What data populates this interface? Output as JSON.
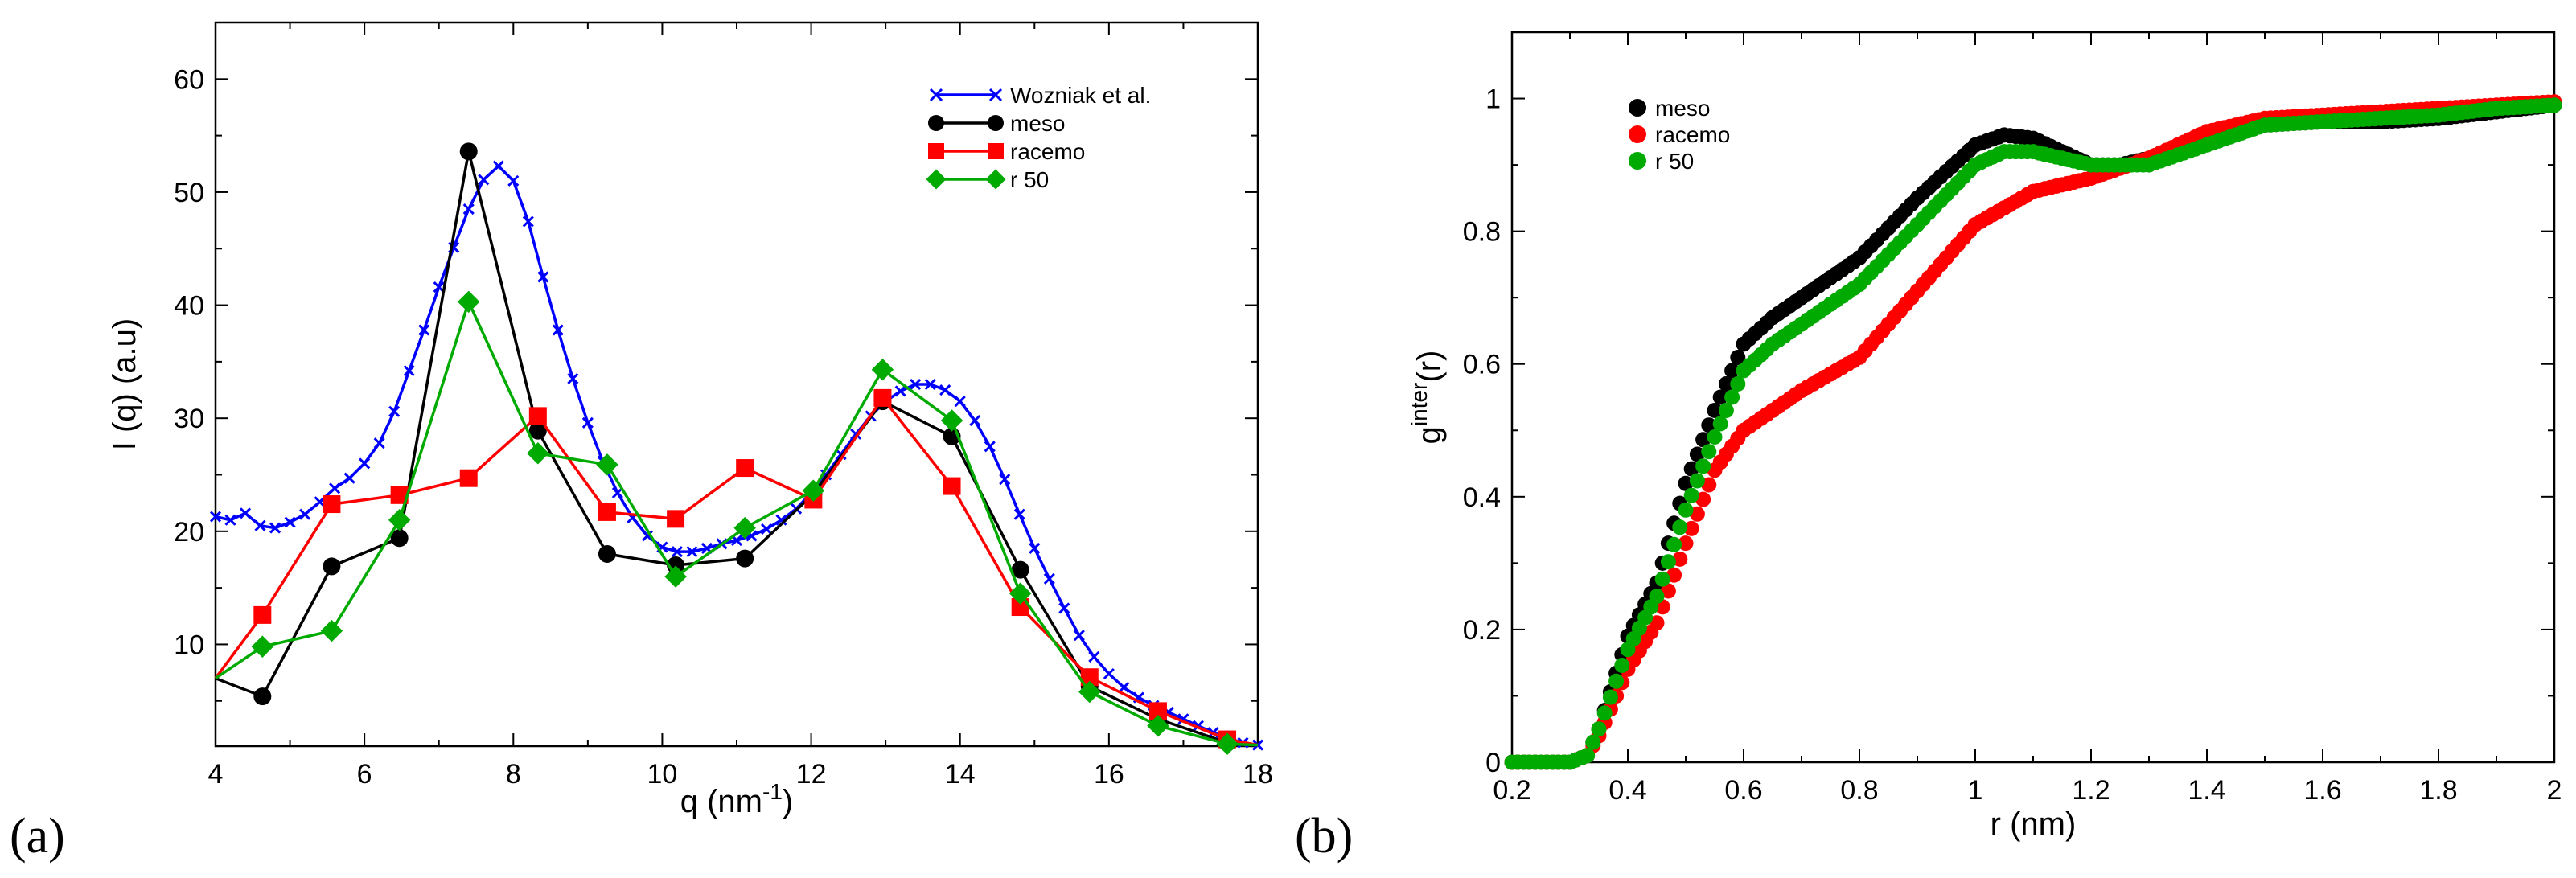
{
  "chart_data": [
    {
      "type": "line",
      "panel_label": "(a)",
      "title": "",
      "xlabel": "q (nm",
      "xlabel_sup": "-1",
      "xlabel_end": ")",
      "ylabel": "I (q) (a.u)",
      "xlim": [
        4,
        18
      ],
      "ylim": [
        1,
        65
      ],
      "xticks": [
        4,
        6,
        8,
        10,
        12,
        14,
        16,
        18
      ],
      "yticks": [
        10,
        20,
        30,
        40,
        50,
        60
      ],
      "legend_position": "top-right",
      "series": [
        {
          "name": "Wozniak et al.",
          "color": "#0000ff",
          "marker": "x",
          "x": [
            4.0,
            4.2,
            4.4,
            4.6,
            4.8,
            5.0,
            5.2,
            5.4,
            5.6,
            5.8,
            6.0,
            6.2,
            6.4,
            6.6,
            6.8,
            7.0,
            7.2,
            7.4,
            7.6,
            7.8,
            8.0,
            8.2,
            8.4,
            8.6,
            8.8,
            9.0,
            9.2,
            9.4,
            9.6,
            9.8,
            10.0,
            10.2,
            10.4,
            10.6,
            10.8,
            11.0,
            11.2,
            11.4,
            11.6,
            11.8,
            12.0,
            12.2,
            12.4,
            12.6,
            12.8,
            13.0,
            13.2,
            13.4,
            13.6,
            13.8,
            14.0,
            14.2,
            14.4,
            14.6,
            14.8,
            15.0,
            15.2,
            15.4,
            15.6,
            15.8,
            16.0,
            16.2,
            16.4,
            16.6,
            16.8,
            17.0,
            17.2,
            17.4,
            17.6,
            17.8,
            18.0
          ],
          "y": [
            21.3,
            21.0,
            21.6,
            20.5,
            20.3,
            20.8,
            21.5,
            22.6,
            23.8,
            24.7,
            26.0,
            27.8,
            30.6,
            34.2,
            37.8,
            41.6,
            45.1,
            48.5,
            51.1,
            52.3,
            51.0,
            47.4,
            42.5,
            37.8,
            33.5,
            29.6,
            26.2,
            23.4,
            21.2,
            19.6,
            18.6,
            18.2,
            18.2,
            18.5,
            18.9,
            19.2,
            19.6,
            20.2,
            21.0,
            22.0,
            23.4,
            25.0,
            26.8,
            28.6,
            30.2,
            31.5,
            32.4,
            33.0,
            33.0,
            32.5,
            31.5,
            29.8,
            27.5,
            24.6,
            21.5,
            18.5,
            15.8,
            13.2,
            10.8,
            8.9,
            7.4,
            6.2,
            5.3,
            4.6,
            4.0,
            3.4,
            2.8,
            2.2,
            1.7,
            1.3,
            1.1
          ]
        },
        {
          "name": "meso",
          "color": "#000000",
          "marker": "circle",
          "x": [
            4.0,
            4.63,
            5.56,
            6.47,
            7.4,
            8.33,
            9.26,
            10.18,
            11.11,
            12.03,
            12.96,
            13.89,
            14.81,
            15.74,
            16.66,
            17.59,
            18.0
          ],
          "y": [
            7.0,
            5.4,
            16.9,
            19.4,
            53.6,
            28.9,
            18.0,
            17.0,
            17.6,
            23.3,
            31.5,
            28.4,
            16.6,
            6.3,
            3.4,
            1.3,
            1.1
          ]
        },
        {
          "name": "racemo",
          "color": "#ff0000",
          "marker": "square",
          "x": [
            4.0,
            4.63,
            5.56,
            6.47,
            7.4,
            8.33,
            9.26,
            10.18,
            11.11,
            12.03,
            12.96,
            13.89,
            14.81,
            15.74,
            16.66,
            17.59,
            18.0
          ],
          "y": [
            7.0,
            12.6,
            22.4,
            23.2,
            24.7,
            30.2,
            21.7,
            21.1,
            25.6,
            22.8,
            31.8,
            24.0,
            13.3,
            7.1,
            4.1,
            1.6,
            1.1
          ]
        },
        {
          "name": "r 50",
          "color": "#00aa00",
          "marker": "diamond",
          "x": [
            4.0,
            4.63,
            5.56,
            6.47,
            7.4,
            8.33,
            9.26,
            10.18,
            11.11,
            12.03,
            12.96,
            13.89,
            14.81,
            15.74,
            16.66,
            17.59,
            18.0
          ],
          "y": [
            7.0,
            9.8,
            11.2,
            21.0,
            40.3,
            26.9,
            25.9,
            16.0,
            20.3,
            23.6,
            34.3,
            29.8,
            14.5,
            5.8,
            2.8,
            1.2,
            1.1
          ]
        }
      ]
    },
    {
      "type": "scatter",
      "panel_label": "(b)",
      "title": "",
      "xlabel": "r (nm)",
      "ylabel": "g",
      "ylabel_sup": "inter",
      "ylabel_end": "(r)",
      "xlim": [
        0.2,
        2.0
      ],
      "ylim": [
        0,
        1.1
      ],
      "xticks": [
        "0.2",
        "0.4",
        "0.6",
        "0.8",
        "1",
        "1.2",
        "1.4",
        "1.6",
        "1.8",
        "2"
      ],
      "xtick_values": [
        0.2,
        0.4,
        0.6,
        0.8,
        1.0,
        1.2,
        1.4,
        1.6,
        1.8,
        2.0
      ],
      "yticks": [
        "0",
        "0.2",
        "0.4",
        "0.6",
        "0.8",
        "1"
      ],
      "ytick_values": [
        0,
        0.2,
        0.4,
        0.6,
        0.8,
        1.0
      ],
      "legend_position": "top-left",
      "point_spacing": 0.01,
      "series": [
        {
          "name": "meso",
          "color": "#000000",
          "x_anchors": [
            0.2,
            0.3,
            0.33,
            0.35,
            0.4,
            0.45,
            0.5,
            0.55,
            0.6,
            0.65,
            0.7,
            0.8,
            0.9,
            1.0,
            1.05,
            1.1,
            1.2,
            1.25,
            1.3,
            1.4,
            1.5,
            1.6,
            1.7,
            1.8,
            1.9,
            2.0
          ],
          "y_anchors": [
            0.0,
            0.0,
            0.01,
            0.05,
            0.19,
            0.27,
            0.42,
            0.53,
            0.63,
            0.67,
            0.7,
            0.76,
            0.85,
            0.93,
            0.945,
            0.94,
            0.9,
            0.9,
            0.91,
            0.94,
            0.96,
            0.965,
            0.965,
            0.97,
            0.98,
            0.99
          ]
        },
        {
          "name": "racemo",
          "color": "#ff0000",
          "x_anchors": [
            0.2,
            0.3,
            0.33,
            0.35,
            0.4,
            0.45,
            0.5,
            0.55,
            0.6,
            0.65,
            0.7,
            0.8,
            0.9,
            1.0,
            1.1,
            1.2,
            1.3,
            1.4,
            1.5,
            1.6,
            1.7,
            1.8,
            1.9,
            2.0
          ],
          "y_anchors": [
            0.0,
            0.0,
            0.01,
            0.04,
            0.14,
            0.21,
            0.33,
            0.44,
            0.5,
            0.53,
            0.56,
            0.61,
            0.71,
            0.81,
            0.86,
            0.88,
            0.91,
            0.95,
            0.97,
            0.975,
            0.98,
            0.985,
            0.99,
            0.995
          ]
        },
        {
          "name": "r 50",
          "color": "#00aa00",
          "x_anchors": [
            0.2,
            0.3,
            0.33,
            0.35,
            0.4,
            0.45,
            0.5,
            0.55,
            0.6,
            0.65,
            0.7,
            0.8,
            0.9,
            1.0,
            1.05,
            1.1,
            1.2,
            1.3,
            1.4,
            1.5,
            1.6,
            1.7,
            1.8,
            1.9,
            2.0
          ],
          "y_anchors": [
            0.0,
            0.0,
            0.01,
            0.05,
            0.17,
            0.25,
            0.38,
            0.49,
            0.59,
            0.63,
            0.66,
            0.72,
            0.81,
            0.9,
            0.92,
            0.92,
            0.9,
            0.9,
            0.93,
            0.96,
            0.965,
            0.97,
            0.975,
            0.985,
            0.99
          ]
        }
      ]
    }
  ]
}
